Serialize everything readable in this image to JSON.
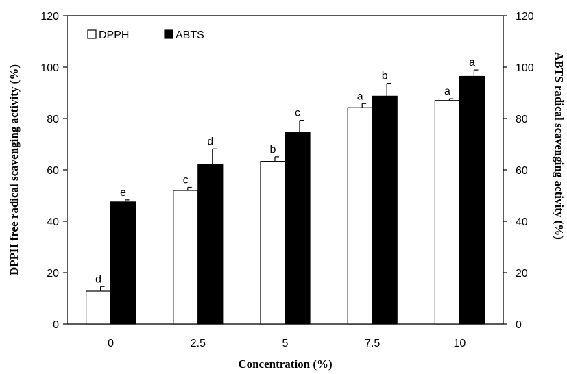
{
  "chart_data": {
    "type": "bar",
    "xlabel": "Concentration (%)",
    "ylabel": "DPPH free radical scavenging activity (%)",
    "ylabel_right": "ABTS radical scavenging activity (%)",
    "categories": [
      "0",
      "2.5",
      "5",
      "7.5",
      "10"
    ],
    "ylim": [
      0,
      120
    ],
    "yticks": [
      "0",
      "20",
      "40",
      "60",
      "80",
      "100",
      "120"
    ],
    "legend_position": "top-left",
    "grid": false,
    "series": [
      {
        "name": "DPPH",
        "fill": "#ffffff",
        "values": [
          12.8,
          52.0,
          63.3,
          84.2,
          87.0
        ],
        "errors": [
          1.8,
          1.2,
          1.8,
          1.6,
          0.7
        ],
        "letters": [
          "d",
          "c",
          "b",
          "a",
          "a"
        ]
      },
      {
        "name": "ABTS",
        "fill": "#000000",
        "values": [
          47.5,
          62.0,
          74.5,
          88.7,
          96.4
        ],
        "errors": [
          0.8,
          6.2,
          4.8,
          5.0,
          2.5
        ],
        "letters": [
          "e",
          "d",
          "c",
          "b",
          "a"
        ]
      }
    ]
  }
}
